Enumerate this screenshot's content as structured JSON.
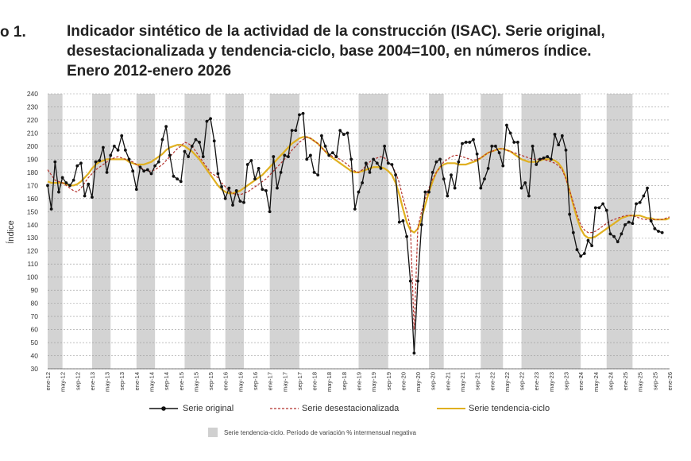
{
  "figure": {
    "label": "o 1.",
    "title_lines": [
      "Indicador sintético de la actividad de la construcción (ISAC). Serie original,",
      "desestacionalizada y tendencia-ciclo, base 2004=100, en números índice.",
      "Enero 2012-enero 2026"
    ]
  },
  "legend": {
    "original": "Serie original",
    "seasonal": "Serie desestacionalizada",
    "trend": "Serie tendencia-ciclo",
    "shade_note": "Serie tendencia-ciclo. Período de variación % intermensual negativa"
  },
  "colors": {
    "original": "#111111",
    "seasonal": "#b5332e",
    "trend": "#e0b020",
    "shade": "#d3d3d3",
    "grid": "#9a9a9a"
  },
  "chart_data": {
    "type": "line",
    "title": "Indicador sintético de la actividad de la construcción (ISAC). Serie original, desestacionalizada y tendencia-ciclo, base 2004=100, en números índice. Enero 2012-enero 2026",
    "xlabel": "",
    "ylabel": "Índice",
    "ylim": [
      30,
      240
    ],
    "yticks": [
      30,
      40,
      50,
      60,
      70,
      80,
      90,
      100,
      110,
      120,
      130,
      140,
      150,
      160,
      170,
      180,
      190,
      200,
      210,
      220,
      230,
      240
    ],
    "grid": true,
    "legend_position": "bottom",
    "x_start": "ene-12",
    "x_end": "ene-26",
    "n_months": 169,
    "tick_labels": [
      "ene-12",
      "may-12",
      "sep-12",
      "ene-13",
      "may-13",
      "sep-13",
      "ene-14",
      "may-14",
      "sep-14",
      "ene-15",
      "may-15",
      "sep-15",
      "ene-16",
      "may-16",
      "sep-16",
      "ene-17",
      "may-17",
      "sep-17",
      "ene-18",
      "may-18",
      "sep-18",
      "ene-19",
      "may-19",
      "sep-19",
      "ene-20",
      "may-20",
      "sep-20",
      "ene-21",
      "may-21",
      "sep-21",
      "ene-22",
      "may-22",
      "sep-22",
      "ene-23",
      "may-23",
      "sep-23",
      "ene-24",
      "may-24",
      "sep-24",
      "ene-25",
      "may-25",
      "sep-25",
      "ene-26"
    ],
    "shaded_periods": [
      [
        0,
        4
      ],
      [
        12,
        17
      ],
      [
        24,
        29
      ],
      [
        37,
        44
      ],
      [
        48,
        53
      ],
      [
        60,
        68
      ],
      [
        84,
        92
      ],
      [
        103,
        107
      ],
      [
        117,
        123
      ],
      [
        128,
        144
      ],
      [
        151,
        158
      ]
    ],
    "series": [
      {
        "name": "Serie original",
        "style": "line-markers",
        "values": [
          170,
          152,
          188,
          165,
          176,
          172,
          170,
          174,
          185,
          187,
          162,
          171,
          161,
          188,
          189,
          199,
          180,
          193,
          200,
          197,
          208,
          197,
          190,
          181,
          167,
          184,
          181,
          182,
          179,
          185,
          188,
          205,
          215,
          193,
          177,
          175,
          173,
          196,
          192,
          200,
          205,
          203,
          192,
          219,
          221,
          204,
          179,
          169,
          160,
          168,
          155,
          166,
          158,
          157,
          186,
          189,
          175,
          183,
          167,
          166,
          150,
          192,
          168,
          180,
          193,
          192,
          212,
          212,
          224,
          225,
          190,
          193,
          180,
          178,
          208,
          200,
          193,
          195,
          192,
          212,
          209,
          210,
          190,
          152,
          165,
          172,
          187,
          180,
          190,
          187,
          183,
          200,
          187,
          186,
          178,
          142,
          143,
          131,
          97,
          42,
          97,
          140,
          165,
          165,
          180,
          188,
          190,
          175,
          162,
          178,
          168,
          188,
          202,
          203,
          203,
          205,
          194,
          168,
          175,
          183,
          200,
          200,
          195,
          185,
          216,
          210,
          203,
          203,
          168,
          172,
          162,
          200,
          186,
          190,
          191,
          192,
          190,
          209,
          201,
          208,
          197,
          148,
          134,
          121,
          116,
          118,
          128,
          124,
          153,
          153,
          156,
          151,
          133,
          131,
          127,
          133,
          140,
          142,
          141,
          156,
          157,
          162,
          168,
          143,
          137,
          135,
          134
        ]
      },
      {
        "name": "Serie desestacionalizada",
        "style": "dashed",
        "values": [
          182,
          178,
          174,
          173,
          172,
          170,
          168,
          166,
          165,
          168,
          172,
          176,
          179,
          182,
          184,
          186,
          188,
          190,
          191,
          192,
          191,
          190,
          189,
          188,
          186,
          184,
          182,
          181,
          181,
          182,
          184,
          186,
          189,
          192,
          195,
          198,
          200,
          203,
          202,
          200,
          196,
          192,
          188,
          184,
          180,
          178,
          176,
          172,
          169,
          166,
          164,
          163,
          163,
          164,
          165,
          167,
          169,
          171,
          173,
          175,
          178,
          181,
          184,
          187,
          190,
          193,
          197,
          200,
          203,
          205,
          207,
          206,
          204,
          202,
          199,
          196,
          194,
          192,
          191,
          190,
          188,
          186,
          183,
          181,
          180,
          182,
          185,
          188,
          190,
          191,
          192,
          191,
          188,
          185,
          180,
          172,
          160,
          150,
          138,
          60,
          138,
          150,
          160,
          168,
          175,
          180,
          184,
          188,
          190,
          192,
          193,
          193,
          192,
          191,
          190,
          189,
          190,
          191,
          193,
          195,
          196,
          197,
          198,
          198,
          197,
          196,
          195,
          194,
          193,
          192,
          191,
          190,
          190,
          190,
          190,
          189,
          188,
          187,
          185,
          182,
          175,
          166,
          157,
          148,
          140,
          136,
          134,
          134,
          135,
          137,
          139,
          141,
          143,
          144,
          145,
          146,
          147,
          147,
          147,
          146,
          145,
          144,
          144,
          144,
          144,
          144,
          144,
          145,
          146
        ]
      },
      {
        "name": "Serie tendencia-ciclo",
        "style": "line",
        "values": [
          173,
          172,
          172,
          172,
          172,
          171,
          170,
          170,
          171,
          173,
          176,
          179,
          183,
          186,
          188,
          189,
          190,
          190,
          190,
          190,
          190,
          190,
          188,
          187,
          186,
          186,
          186,
          187,
          188,
          190,
          192,
          194,
          197,
          199,
          200,
          201,
          201,
          200,
          198,
          196,
          193,
          190,
          186,
          182,
          178,
          174,
          170,
          167,
          165,
          164,
          164,
          165,
          166,
          168,
          170,
          172,
          174,
          176,
          178,
          181,
          184,
          187,
          190,
          193,
          196,
          199,
          202,
          204,
          206,
          207,
          207,
          206,
          204,
          202,
          199,
          196,
          193,
          191,
          189,
          187,
          185,
          183,
          181,
          180,
          180,
          181,
          182,
          183,
          184,
          184,
          184,
          183,
          181,
          178,
          172,
          163,
          152,
          142,
          136,
          134,
          137,
          145,
          155,
          165,
          173,
          180,
          184,
          186,
          187,
          187,
          187,
          186,
          186,
          186,
          187,
          188,
          189,
          191,
          193,
          195,
          196,
          197,
          198,
          198,
          197,
          196,
          194,
          192,
          190,
          189,
          188,
          188,
          188,
          189,
          190,
          190,
          190,
          189,
          187,
          183,
          176,
          166,
          155,
          145,
          137,
          132,
          130,
          130,
          131,
          133,
          135,
          137,
          139,
          141,
          143,
          145,
          146,
          147,
          147,
          147,
          147,
          146,
          145,
          145,
          144,
          144,
          144,
          144,
          145
        ]
      }
    ]
  }
}
